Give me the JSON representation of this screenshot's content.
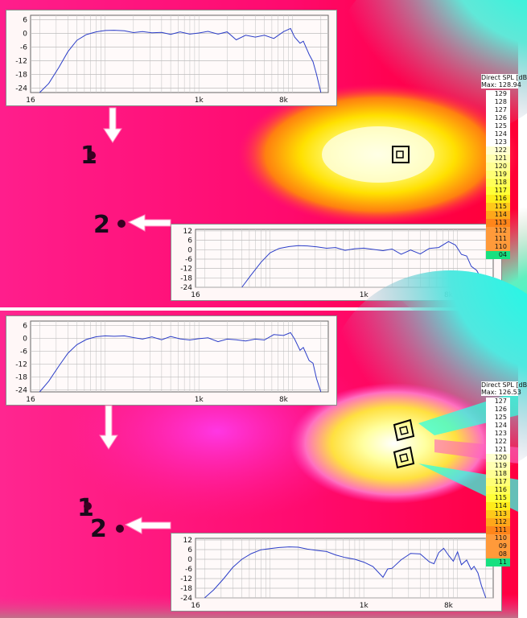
{
  "panels": [
    {
      "legend": {
        "title": "Direct SPL [dB",
        "max_label": "Max",
        "max_value": "128.94",
        "scale": [
          "129",
          "128",
          "127",
          "126",
          "125",
          "124",
          "123",
          "122",
          "121",
          "120",
          "119",
          "118",
          "117",
          "116",
          "115",
          "114",
          "113",
          "112",
          "111",
          "110",
          "04"
        ]
      },
      "markers": [
        "1",
        "2"
      ],
      "speakers": 1
    },
    {
      "legend": {
        "title": "Direct SPL [dB",
        "max_label": "Max",
        "max_value": "126.53",
        "scale": [
          "127",
          "126",
          "125",
          "124",
          "123",
          "122",
          "121",
          "120",
          "119",
          "118",
          "117",
          "116",
          "115",
          "114",
          "113",
          "112",
          "111",
          "110",
          "09",
          "08",
          "11"
        ]
      },
      "markers": [
        "1",
        "2"
      ],
      "speakers": 2
    }
  ],
  "chart_data": [
    {
      "type": "line",
      "name": "top-1",
      "x_ticks": [
        "16",
        "1k",
        "8k"
      ],
      "y_ticks": [
        "6",
        "0",
        "-6",
        "-12",
        "-18",
        "-24"
      ],
      "ylim": [
        -26,
        8
      ],
      "series": [
        {
          "values": [
            [
              20,
              -26
            ],
            [
              25,
              -22
            ],
            [
              32,
              -15
            ],
            [
              40,
              -8
            ],
            [
              50,
              -3
            ],
            [
              63,
              -0.5
            ],
            [
              80,
              0.7
            ],
            [
              100,
              1.3
            ],
            [
              125,
              1.4
            ],
            [
              160,
              1.2
            ],
            [
              200,
              0.4
            ],
            [
              250,
              0.8
            ],
            [
              315,
              0.3
            ],
            [
              400,
              0.5
            ],
            [
              500,
              -0.4
            ],
            [
              630,
              0.7
            ],
            [
              800,
              -0.3
            ],
            [
              1000,
              0.2
            ],
            [
              1250,
              0.9
            ],
            [
              1600,
              -0.3
            ],
            [
              2000,
              0.7
            ],
            [
              2500,
              -2.8
            ],
            [
              3150,
              -0.8
            ],
            [
              4000,
              -1.6
            ],
            [
              5000,
              -0.8
            ],
            [
              6300,
              -2.2
            ],
            [
              8000,
              0.8
            ],
            [
              9500,
              2.2
            ],
            [
              10500,
              -1.6
            ],
            [
              12000,
              -4.3
            ],
            [
              13000,
              -3.4
            ],
            [
              15000,
              -9.2
            ],
            [
              16500,
              -12.4
            ],
            [
              18000,
              -18
            ],
            [
              20000,
              -26
            ]
          ]
        }
      ]
    },
    {
      "type": "line",
      "name": "top-2",
      "x_ticks": [
        "16",
        "1k",
        "8k"
      ],
      "y_ticks": [
        "12",
        "6",
        "0",
        "-6",
        "-12",
        "-18",
        "-24"
      ],
      "ylim": [
        -24,
        13
      ],
      "series": [
        {
          "values": [
            [
              50,
              -24
            ],
            [
              63,
              -16
            ],
            [
              80,
              -8
            ],
            [
              100,
              -2
            ],
            [
              125,
              0.8
            ],
            [
              160,
              2
            ],
            [
              200,
              2.6
            ],
            [
              250,
              2.4
            ],
            [
              315,
              1.8
            ],
            [
              400,
              0.9
            ],
            [
              500,
              1.4
            ],
            [
              630,
              -0.4
            ],
            [
              800,
              0.6
            ],
            [
              1000,
              1
            ],
            [
              1250,
              0.2
            ],
            [
              1600,
              -0.6
            ],
            [
              2000,
              0.4
            ],
            [
              2500,
              -2.9
            ],
            [
              3150,
              -0.2
            ],
            [
              4000,
              -2.7
            ],
            [
              5000,
              0.8
            ],
            [
              6300,
              1.4
            ],
            [
              8000,
              5.2
            ],
            [
              9500,
              3
            ],
            [
              11000,
              -3
            ],
            [
              12500,
              -4
            ],
            [
              14000,
              -10.6
            ],
            [
              16000,
              -13.2
            ],
            [
              18000,
              -18.8
            ],
            [
              20000,
              -24
            ]
          ]
        }
      ]
    },
    {
      "type": "line",
      "name": "bottom-1",
      "x_ticks": [
        "16",
        "1k",
        "8k"
      ],
      "y_ticks": [
        "6",
        "0",
        "-6",
        "-12",
        "-18",
        "-24"
      ],
      "ylim": [
        -25,
        8
      ],
      "series": [
        {
          "values": [
            [
              20,
              -25
            ],
            [
              25,
              -20
            ],
            [
              32,
              -13
            ],
            [
              40,
              -7
            ],
            [
              50,
              -3
            ],
            [
              63,
              -0.6
            ],
            [
              80,
              0.7
            ],
            [
              100,
              1.1
            ],
            [
              125,
              0.9
            ],
            [
              160,
              1.1
            ],
            [
              200,
              0.3
            ],
            [
              250,
              -0.4
            ],
            [
              315,
              0.6
            ],
            [
              400,
              -0.7
            ],
            [
              500,
              0.8
            ],
            [
              630,
              -0.3
            ],
            [
              800,
              -0.8
            ],
            [
              1000,
              -0.2
            ],
            [
              1250,
              0.2
            ],
            [
              1600,
              -1.6
            ],
            [
              2000,
              -0.4
            ],
            [
              2500,
              -0.7
            ],
            [
              3150,
              -1.3
            ],
            [
              4000,
              -0.4
            ],
            [
              5000,
              -0.8
            ],
            [
              6300,
              1.7
            ],
            [
              8000,
              1.3
            ],
            [
              9500,
              2.6
            ],
            [
              10500,
              -0.4
            ],
            [
              12000,
              -5.6
            ],
            [
              13000,
              -4.3
            ],
            [
              15000,
              -10.4
            ],
            [
              16500,
              -11.6
            ],
            [
              18000,
              -18.8
            ],
            [
              20000,
              -25
            ]
          ]
        }
      ]
    },
    {
      "type": "line",
      "name": "bottom-2",
      "x_ticks": [
        "16",
        "1k",
        "8k"
      ],
      "y_ticks": [
        "12",
        "6",
        "0",
        "-6",
        "-12",
        "-18",
        "-24"
      ],
      "ylim": [
        -24,
        13
      ],
      "series": [
        {
          "values": [
            [
              20,
              -24
            ],
            [
              25,
              -19
            ],
            [
              32,
              -12
            ],
            [
              40,
              -5
            ],
            [
              50,
              0
            ],
            [
              63,
              3.5
            ],
            [
              80,
              5.9
            ],
            [
              100,
              6.6
            ],
            [
              125,
              7.3
            ],
            [
              160,
              7.7
            ],
            [
              200,
              7.5
            ],
            [
              250,
              6.3
            ],
            [
              315,
              5.5
            ],
            [
              400,
              4.8
            ],
            [
              500,
              2.7
            ],
            [
              630,
              1.1
            ],
            [
              800,
              0
            ],
            [
              1000,
              -1.8
            ],
            [
              1250,
              -4.5
            ],
            [
              1600,
              -11.2
            ],
            [
              1800,
              -6
            ],
            [
              2000,
              -5.6
            ],
            [
              2500,
              -0.3
            ],
            [
              3150,
              3.6
            ],
            [
              4000,
              3.3
            ],
            [
              5000,
              -1.6
            ],
            [
              5600,
              -2.8
            ],
            [
              6300,
              4.1
            ],
            [
              7100,
              6.8
            ],
            [
              8000,
              2.5
            ],
            [
              9000,
              -1.2
            ],
            [
              10000,
              4.6
            ],
            [
              11000,
              -3.4
            ],
            [
              12500,
              -0.5
            ],
            [
              14000,
              -6.4
            ],
            [
              15000,
              -4.4
            ],
            [
              16500,
              -8.5
            ],
            [
              18000,
              -16.4
            ],
            [
              20000,
              -24
            ]
          ]
        }
      ]
    }
  ]
}
